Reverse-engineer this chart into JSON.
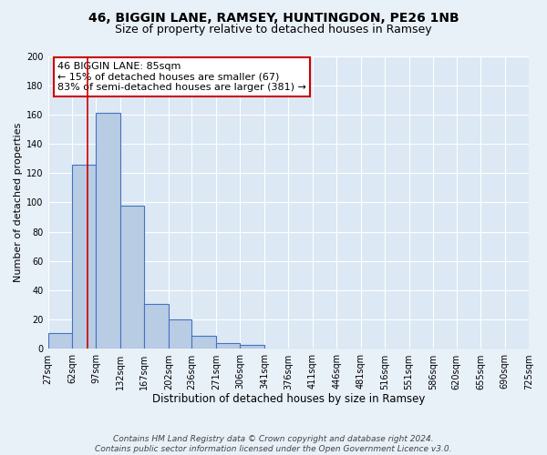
{
  "title": "46, BIGGIN LANE, RAMSEY, HUNTINGDON, PE26 1NB",
  "subtitle": "Size of property relative to detached houses in Ramsey",
  "xlabel": "Distribution of detached houses by size in Ramsey",
  "ylabel": "Number of detached properties",
  "bar_edges": [
    27,
    62,
    97,
    132,
    167,
    202,
    236,
    271,
    306,
    341,
    376,
    411,
    446,
    481,
    516,
    551,
    586,
    620,
    655,
    690,
    725
  ],
  "bar_heights": [
    11,
    126,
    161,
    98,
    31,
    20,
    9,
    4,
    3,
    0,
    0,
    0,
    0,
    0,
    0,
    0,
    0,
    0,
    0,
    0
  ],
  "bar_color": "#b8cce4",
  "bar_edge_color": "#4472c4",
  "bar_linewidth": 0.8,
  "vline_x": 85,
  "vline_color": "#cc0000",
  "vline_linewidth": 1.2,
  "ylim": [
    0,
    200
  ],
  "yticks": [
    0,
    20,
    40,
    60,
    80,
    100,
    120,
    140,
    160,
    180,
    200
  ],
  "xtick_labels": [
    "27sqm",
    "62sqm",
    "97sqm",
    "132sqm",
    "167sqm",
    "202sqm",
    "236sqm",
    "271sqm",
    "306sqm",
    "341sqm",
    "376sqm",
    "411sqm",
    "446sqm",
    "481sqm",
    "516sqm",
    "551sqm",
    "586sqm",
    "620sqm",
    "655sqm",
    "690sqm",
    "725sqm"
  ],
  "annotation_line1": "46 BIGGIN LANE: 85sqm",
  "annotation_line2": "← 15% of detached houses are smaller (67)",
  "annotation_line3": "83% of semi-detached houses are larger (381) →",
  "background_color": "#e8f0f8",
  "plot_background_color": "#dce8f4",
  "grid_color": "#ffffff",
  "footer_line1": "Contains HM Land Registry data © Crown copyright and database right 2024.",
  "footer_line2": "Contains public sector information licensed under the Open Government Licence v3.0.",
  "title_fontsize": 10,
  "subtitle_fontsize": 9,
  "xlabel_fontsize": 8.5,
  "ylabel_fontsize": 8,
  "tick_fontsize": 7,
  "annotation_fontsize": 8,
  "footer_fontsize": 6.5,
  "ann_box_color": "#cc0000"
}
